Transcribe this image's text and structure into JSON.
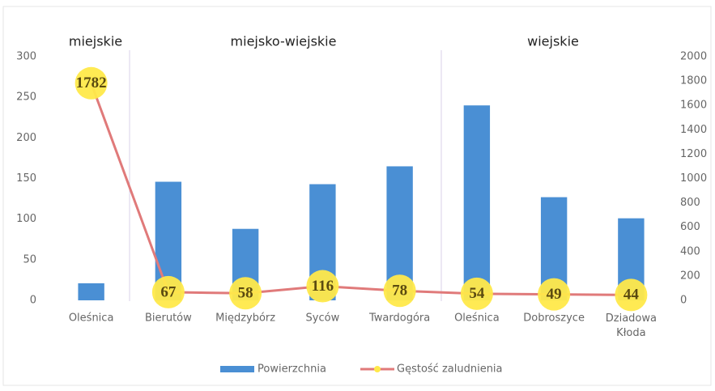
{
  "chart_data": {
    "type": "bar-line",
    "annotations": [
      "miejskie",
      "miejsko-wiejskie",
      "wiejskie"
    ],
    "categories": [
      "Oleśnica",
      "Bierutów",
      "Międzybórz",
      "Syców",
      "Twardogóra",
      "Oleśnica",
      "Dobroszyce",
      "Dziadowa Kłoda"
    ],
    "series": [
      {
        "name": "Powierzchnia",
        "color": "#4a8fd4",
        "values": [
          21,
          146,
          88,
          143,
          165,
          240,
          127,
          101
        ]
      },
      {
        "name": "Gęstość zaludnienia",
        "color": "#e07a7a",
        "axis": "y2",
        "values": [
          1782,
          67,
          58,
          116,
          78,
          54,
          49,
          44
        ]
      }
    ],
    "ylim": [
      0,
      300
    ],
    "yticks": [
      0,
      50,
      100,
      150,
      200,
      250,
      300
    ],
    "y2lim": [
      0,
      2000
    ],
    "y2ticks": [
      0,
      200,
      400,
      600,
      800,
      1000,
      1200,
      1400,
      1600,
      1800,
      2000
    ],
    "grid": false
  }
}
